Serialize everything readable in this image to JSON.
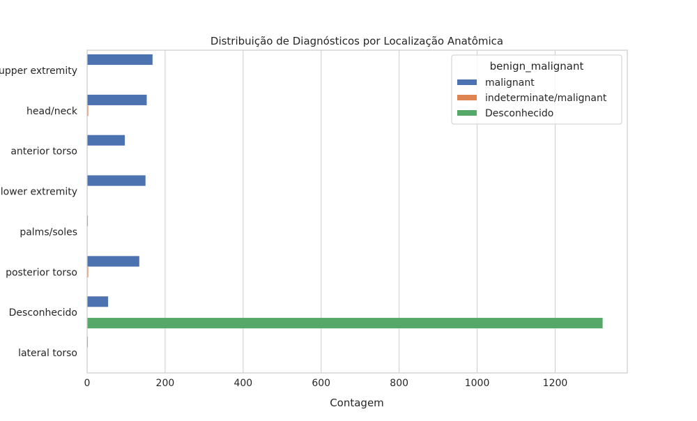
{
  "chart_data": {
    "type": "bar",
    "orientation": "horizontal",
    "title": "Distribuição de Diagnósticos por Localização Anatômica",
    "xlabel": "Contagem",
    "ylabel": "",
    "xlim": [
      0,
      1385
    ],
    "xticks": [
      0,
      200,
      400,
      600,
      800,
      1000,
      1200
    ],
    "grid": "vertical",
    "categories": [
      "upper extremity",
      "head/neck",
      "anterior torso",
      "lower extremity",
      "palms/soles",
      "posterior torso",
      "Desconhecido",
      "lateral torso"
    ],
    "legend": {
      "title": "benign_malignant",
      "placement": "top-right"
    },
    "series": [
      {
        "name": "malignant",
        "color": "#4c72b0",
        "values": [
          168,
          153,
          97,
          150,
          2,
          134,
          54,
          2
        ]
      },
      {
        "name": "indeterminate/malignant",
        "color": "#dd8452",
        "values": [
          1,
          3,
          1,
          1,
          0,
          3,
          0,
          0
        ]
      },
      {
        "name": "Desconhecido",
        "color": "#55a868",
        "values": [
          0,
          0,
          0,
          0,
          0,
          0,
          1322,
          0
        ]
      }
    ]
  }
}
